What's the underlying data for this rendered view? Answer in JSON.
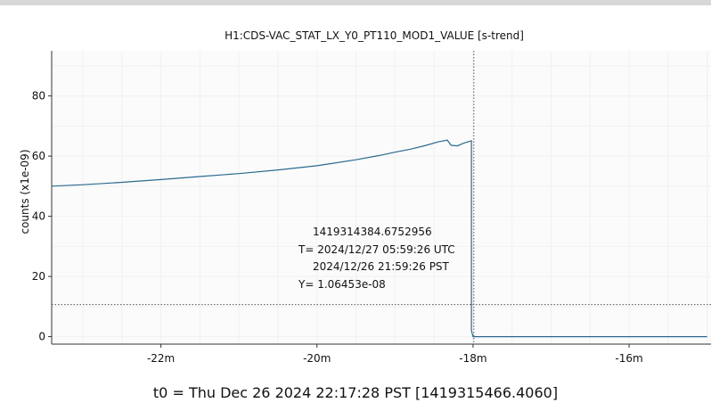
{
  "chart_data": {
    "type": "line",
    "title": "H1:CDS-VAC_STAT_LX_Y0_PT110_MOD1_VALUE [s-trend]",
    "xlabel": "",
    "ylabel": "counts (x1e-09)",
    "x_unit": "minutes relative to t0",
    "xlim": [
      -23.4,
      -14.95
    ],
    "ylim": [
      -2.5,
      95
    ],
    "x_ticks": [
      -22,
      -20,
      -18,
      -16
    ],
    "x_tick_labels": [
      "-22m",
      "-20m",
      "-18m",
      "-16m"
    ],
    "y_ticks": [
      0,
      20,
      40,
      60,
      80
    ],
    "y_tick_labels": [
      "0",
      "20",
      "40",
      "60",
      "80"
    ],
    "grid": true,
    "series": [
      {
        "color": "#2c6a8f",
        "x": [
          -23.4,
          -23.0,
          -22.5,
          -22.0,
          -21.5,
          -21.0,
          -20.5,
          -20.0,
          -19.5,
          -19.2,
          -19.0,
          -18.8,
          -18.6,
          -18.45,
          -18.33,
          -18.28,
          -18.2,
          -18.12,
          -18.02,
          -18.02,
          -18.0,
          -17.9,
          -15.0
        ],
        "y": [
          50.0,
          50.5,
          51.3,
          52.2,
          53.2,
          54.2,
          55.4,
          56.8,
          58.8,
          60.2,
          61.3,
          62.3,
          63.6,
          64.7,
          65.3,
          63.6,
          63.4,
          64.3,
          65.1,
          2.0,
          0.0,
          0.0,
          0.0
        ]
      }
    ],
    "cursor": {
      "x": -17.99,
      "y": 10.6453,
      "labels": {
        "gps": "1419314384.6752956",
        "utc": "T= 2024/12/27 05:59:26 UTC",
        "pst": "2024/12/26 21:59:26 PST",
        "value": "Y= 1.06453e-08"
      }
    },
    "footer": "t0 = Thu Dec 26 2024 22:17:28 PST [1419315466.4060]"
  }
}
